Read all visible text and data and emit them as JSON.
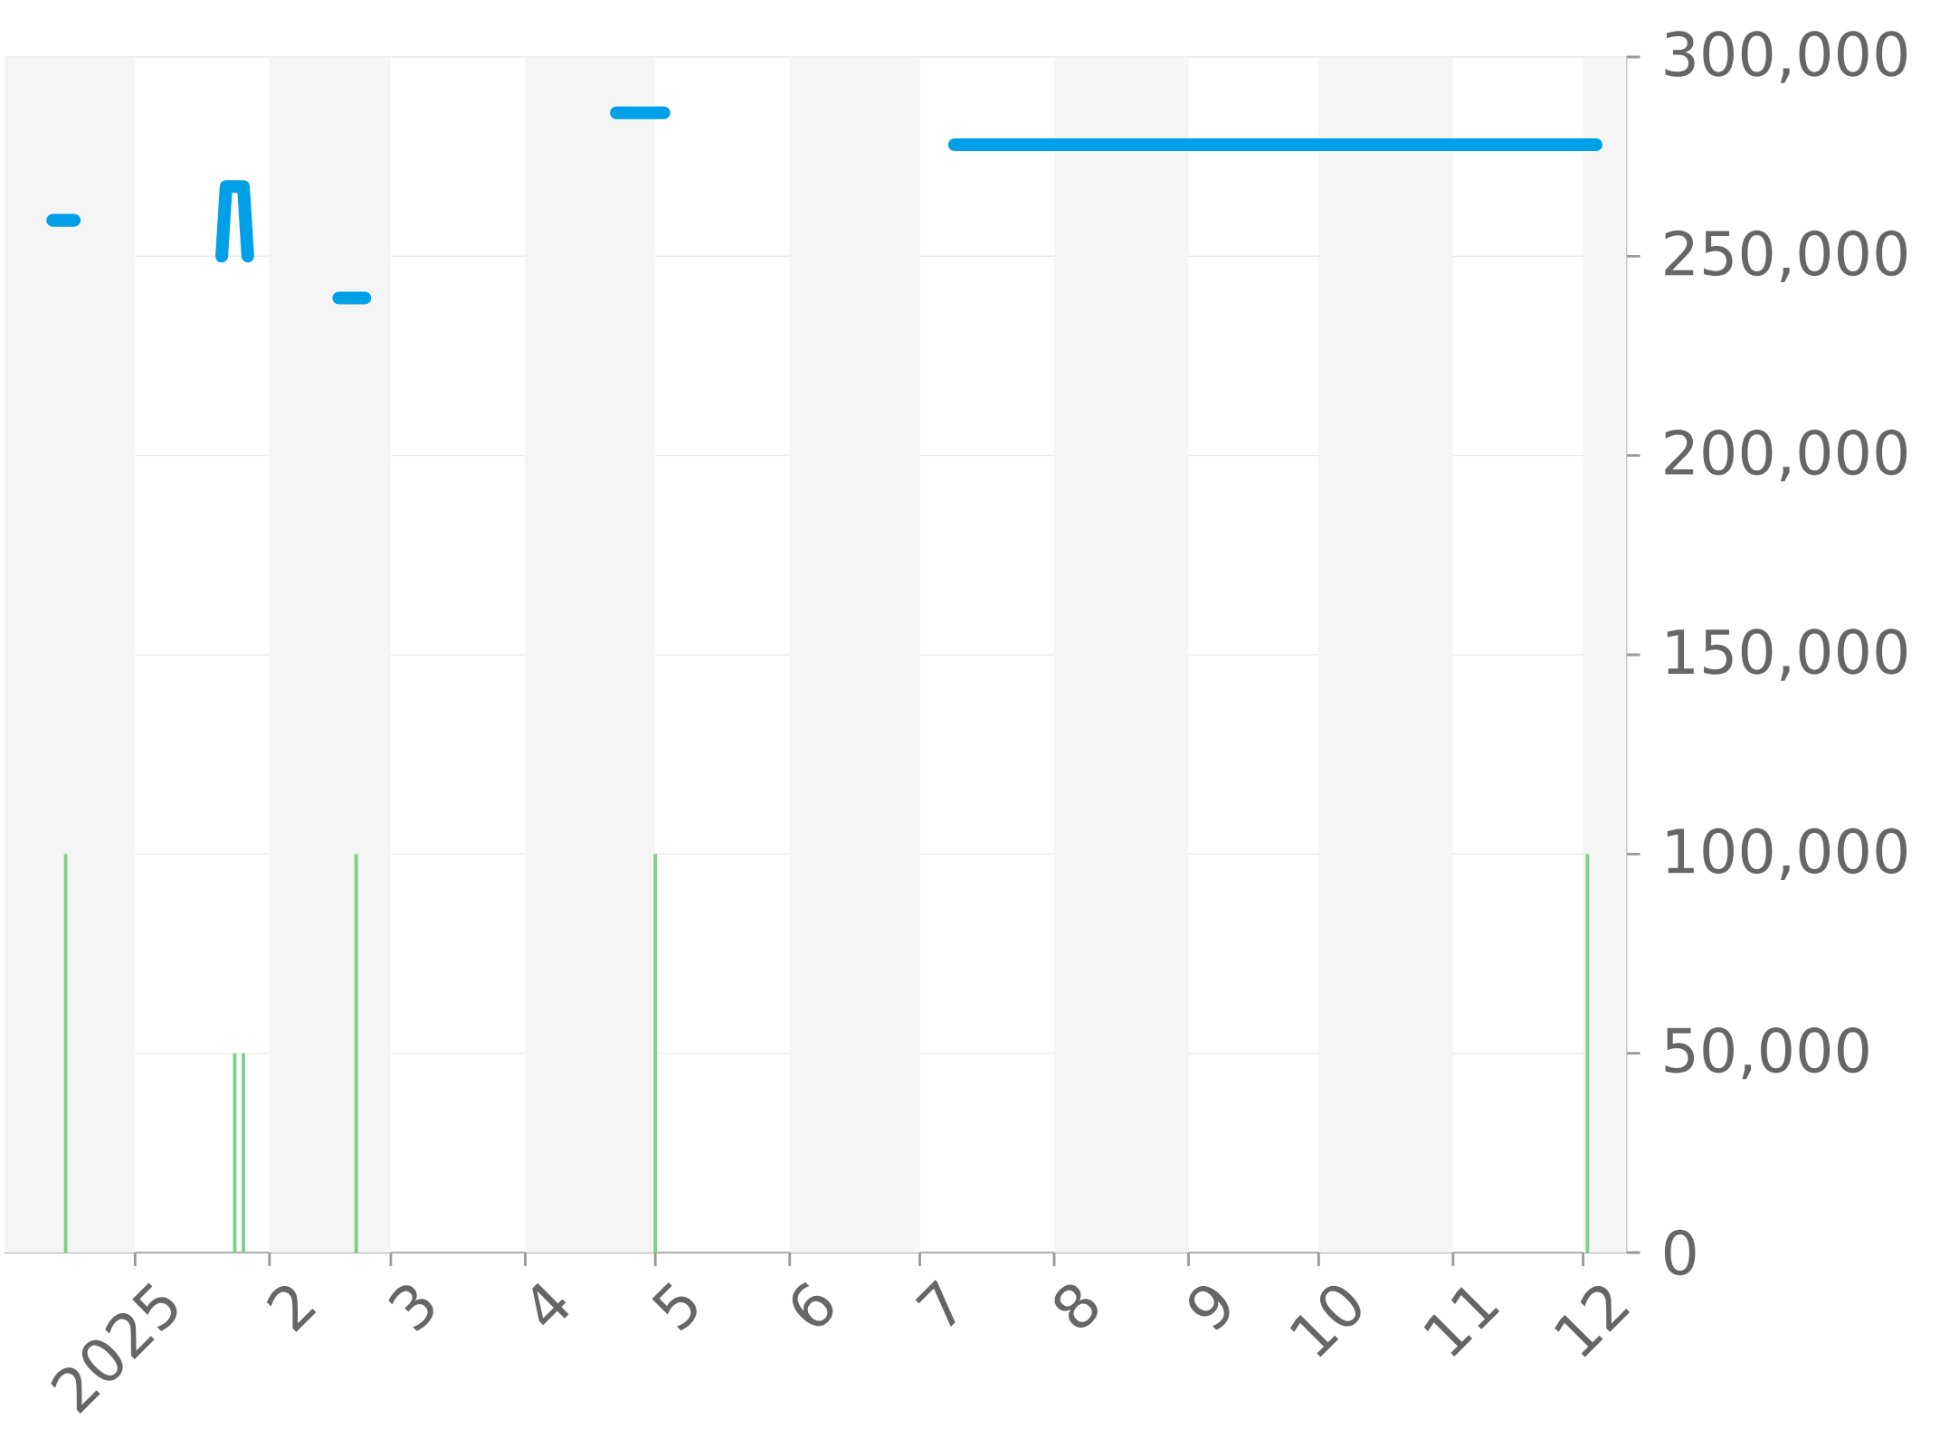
{
  "chart_data": {
    "type": "line",
    "xlim": [
      "2024-12-02",
      "2025-12-11"
    ],
    "ylim": [
      0,
      300000
    ],
    "xticks": [
      {
        "value": "2025-01-01",
        "label": "2025"
      },
      {
        "value": "2025-02-01",
        "label": "2"
      },
      {
        "value": "2025-03-01",
        "label": "3"
      },
      {
        "value": "2025-04-01",
        "label": "4"
      },
      {
        "value": "2025-05-01",
        "label": "5"
      },
      {
        "value": "2025-06-01",
        "label": "6"
      },
      {
        "value": "2025-07-01",
        "label": "7"
      },
      {
        "value": "2025-08-01",
        "label": "8"
      },
      {
        "value": "2025-09-01",
        "label": "9"
      },
      {
        "value": "2025-10-01",
        "label": "10"
      },
      {
        "value": "2025-11-01",
        "label": "11"
      },
      {
        "value": "2025-12-01",
        "label": "12"
      }
    ],
    "yticks": [
      {
        "value": 0,
        "label": "0"
      },
      {
        "value": 50000,
        "label": "50,000"
      },
      {
        "value": 100000,
        "label": "100,000"
      },
      {
        "value": 150000,
        "label": "150,000"
      },
      {
        "value": 200000,
        "label": "200,000"
      },
      {
        "value": 250000,
        "label": "250,000"
      },
      {
        "value": 300000,
        "label": "300,000"
      }
    ],
    "grid": "y",
    "line_style": "solid",
    "series": [
      {
        "color": "#00a0e9",
        "x": [
          "2024-12-13",
          "2024-12-18",
          "2025-01-01",
          "2025-01-21",
          "2025-01-22",
          "2025-01-26",
          "2025-01-27",
          "2025-02-10",
          "2025-02-17",
          "2025-02-23",
          "2025-03-15",
          "2025-04-22",
          "2025-05-03",
          "2025-06-01",
          "2025-07-09",
          "2025-12-04"
        ],
        "values": [
          259000,
          259000,
          null,
          250000,
          267500,
          267500,
          250000,
          null,
          239500,
          239500,
          null,
          286000,
          286000,
          null,
          278000,
          278000
        ]
      },
      {
        "type": "bar",
        "color": "#7fd08a",
        "x": [
          "2024-12-16",
          "2025-01-24",
          "2025-01-26",
          "2025-02-21",
          "2025-05-01",
          "2025-12-02"
        ],
        "values": [
          100000,
          50000,
          50000,
          100000,
          100000,
          100000
        ]
      }
    ],
    "bands": [
      {
        "axis": "x",
        "from": "2024-12-02",
        "to": "2025-01-01",
        "color": "#f5f5f5"
      },
      {
        "axis": "x",
        "from": "2025-02-01",
        "to": "2025-03-01",
        "color": "#f5f5f5"
      },
      {
        "axis": "x",
        "from": "2025-04-01",
        "to": "2025-05-01",
        "color": "#f5f5f5"
      },
      {
        "axis": "x",
        "from": "2025-06-01",
        "to": "2025-07-01",
        "color": "#f5f5f5"
      },
      {
        "axis": "x",
        "from": "2025-08-01",
        "to": "2025-09-01",
        "color": "#f5f5f5"
      },
      {
        "axis": "x",
        "from": "2025-10-01",
        "to": "2025-11-01",
        "color": "#f5f5f5"
      },
      {
        "axis": "x",
        "from": "2025-12-01",
        "to": "2025-12-11",
        "color": "#f5f5f5"
      }
    ]
  }
}
